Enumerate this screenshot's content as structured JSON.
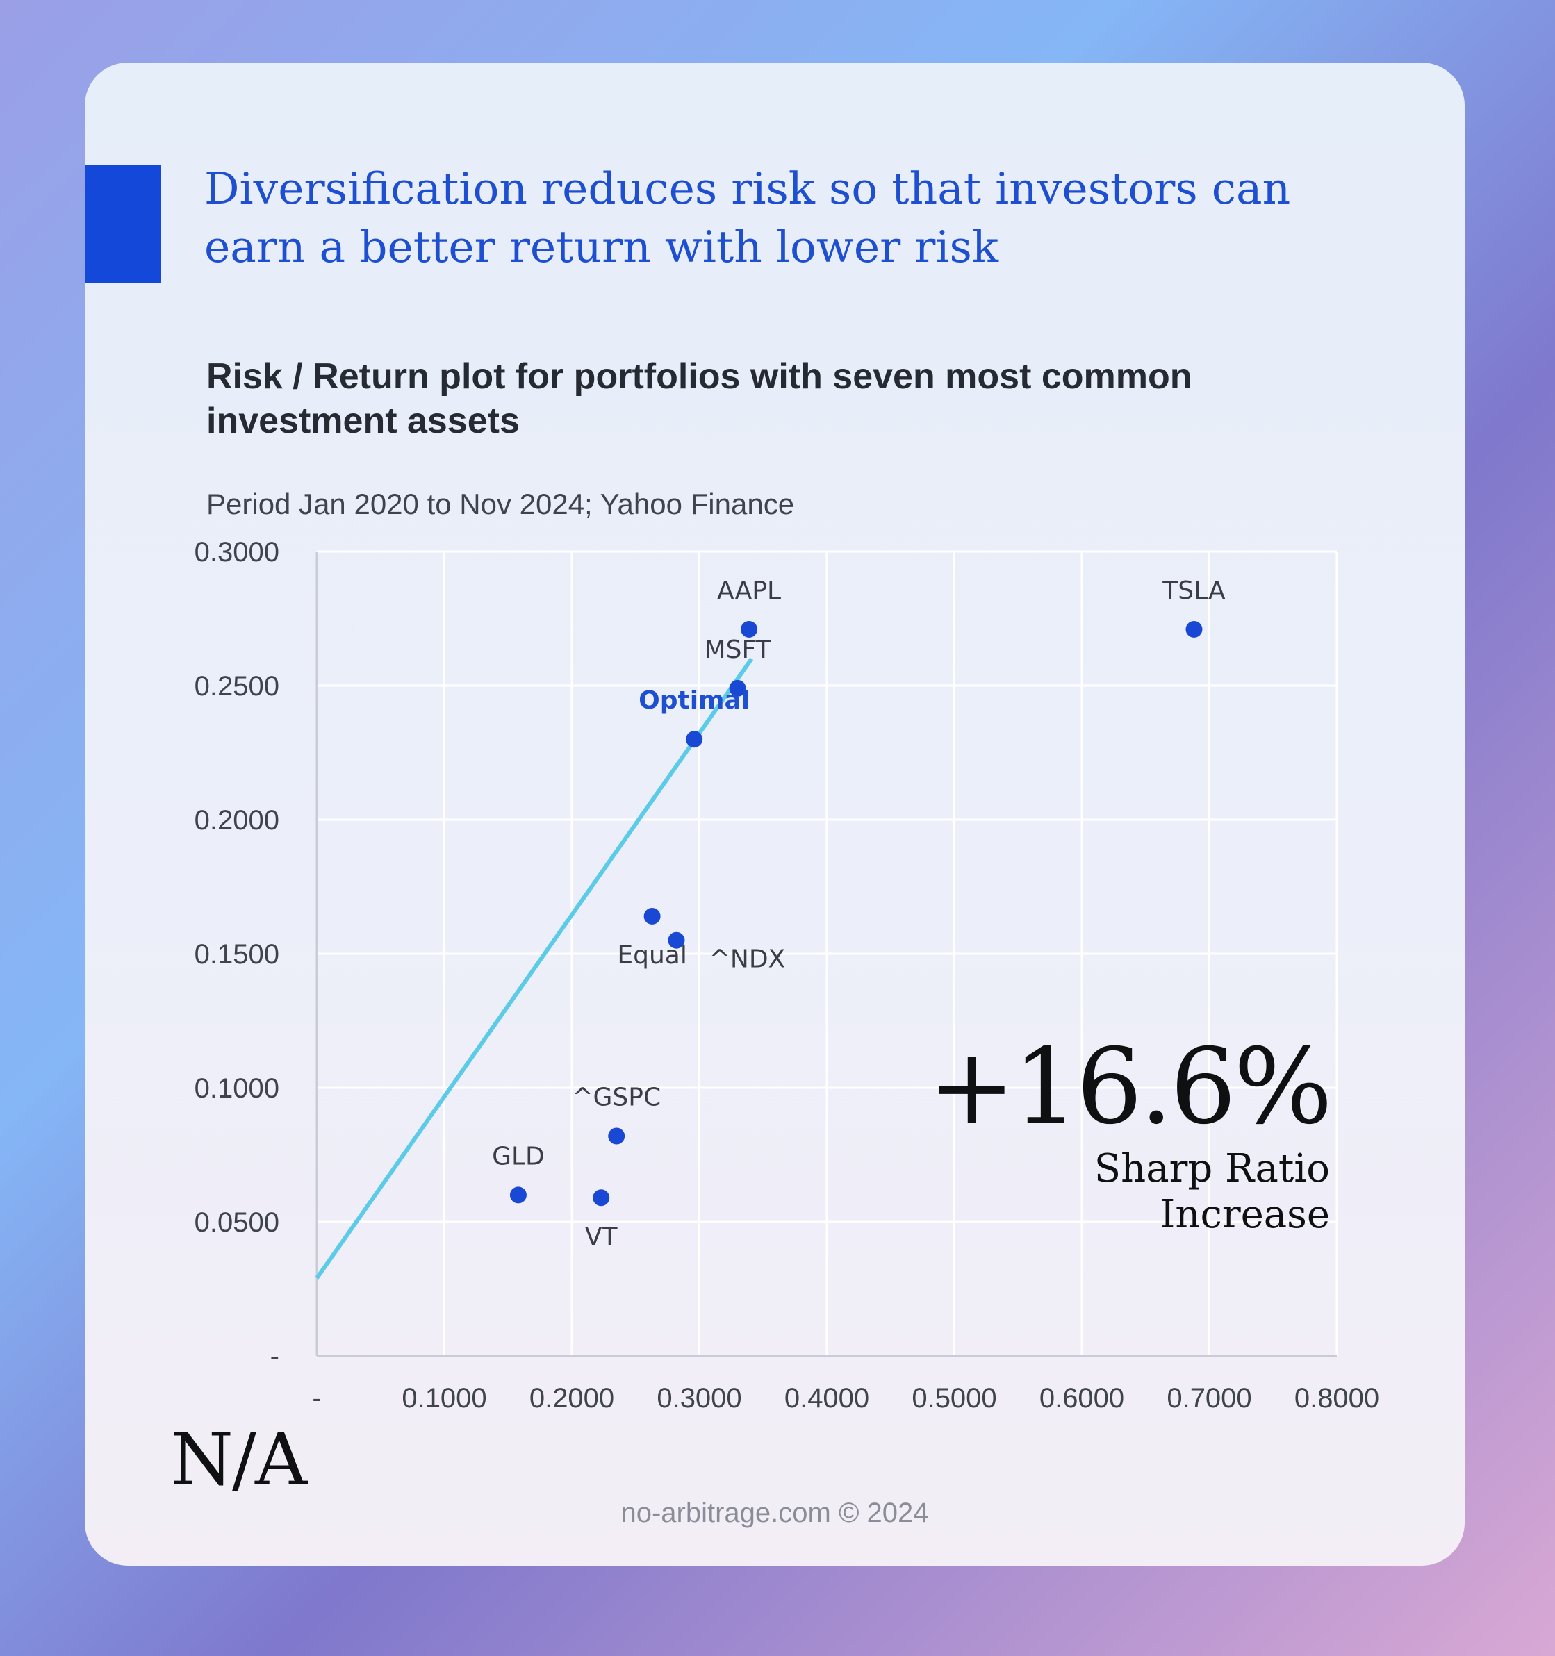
{
  "colors": {
    "accent": "#1448d8",
    "headline": "#1e4fd0",
    "point": "#1848d4",
    "line": "#5ccbe8",
    "grid": "#ffffff",
    "axis": "#c9ccd4",
    "tick_text": "#3f434c",
    "label_text": "#3a3d45",
    "optimal_label": "#1e4fd0"
  },
  "headline": "Diversification reduces risk so that investors can earn a better return with lower risk",
  "stat": {
    "value": "+16.6%",
    "label_line1": "Sharp Ratio",
    "label_line2": "Increase"
  },
  "logo": "N/A",
  "footer": "no-arbitrage.com © 2024",
  "chart_data": {
    "type": "scatter",
    "title": "Risk / Return plot for portfolios with seven most common investment assets",
    "subtitle": "Period Jan 2020 to Nov 2024;  Yahoo Finance",
    "xlabel": "",
    "ylabel": "",
    "xlim": [
      0,
      0.8
    ],
    "ylim": [
      0,
      0.3
    ],
    "grid": true,
    "x_ticks": [
      {
        "value": 0,
        "label": "-"
      },
      {
        "value": 0.1,
        "label": "0.1000"
      },
      {
        "value": 0.2,
        "label": "0.2000"
      },
      {
        "value": 0.3,
        "label": "0.3000"
      },
      {
        "value": 0.4,
        "label": "0.4000"
      },
      {
        "value": 0.5,
        "label": "0.5000"
      },
      {
        "value": 0.6,
        "label": "0.6000"
      },
      {
        "value": 0.7,
        "label": "0.7000"
      },
      {
        "value": 0.8,
        "label": "0.8000"
      }
    ],
    "y_ticks": [
      {
        "value": 0,
        "label": "-"
      },
      {
        "value": 0.05,
        "label": "0.0500"
      },
      {
        "value": 0.1,
        "label": "0.1000"
      },
      {
        "value": 0.15,
        "label": "0.1500"
      },
      {
        "value": 0.2,
        "label": "0.2000"
      },
      {
        "value": 0.25,
        "label": "0.2500"
      },
      {
        "value": 0.3,
        "label": "0.3000"
      }
    ],
    "points": [
      {
        "label": "TSLA",
        "x": 0.688,
        "y": 0.271,
        "label_pos": "above"
      },
      {
        "label": "AAPL",
        "x": 0.339,
        "y": 0.271,
        "label_pos": "above"
      },
      {
        "label": "MSFT",
        "x": 0.33,
        "y": 0.249,
        "label_pos": "above"
      },
      {
        "label": "Optimal",
        "x": 0.296,
        "y": 0.23,
        "label_pos": "above",
        "highlight": true
      },
      {
        "label": "Equal",
        "x": 0.263,
        "y": 0.164,
        "label_pos": "below"
      },
      {
        "label": "^NDX",
        "x": 0.282,
        "y": 0.155,
        "label_pos": "right-below"
      },
      {
        "label": "^GSPC",
        "x": 0.235,
        "y": 0.082,
        "label_pos": "above"
      },
      {
        "label": "GLD",
        "x": 0.158,
        "y": 0.06,
        "label_pos": "above"
      },
      {
        "label": "VT",
        "x": 0.223,
        "y": 0.059,
        "label_pos": "below"
      }
    ],
    "capital_market_line": {
      "x": [
        0.0,
        0.341
      ],
      "y": [
        0.029,
        0.26
      ]
    }
  }
}
